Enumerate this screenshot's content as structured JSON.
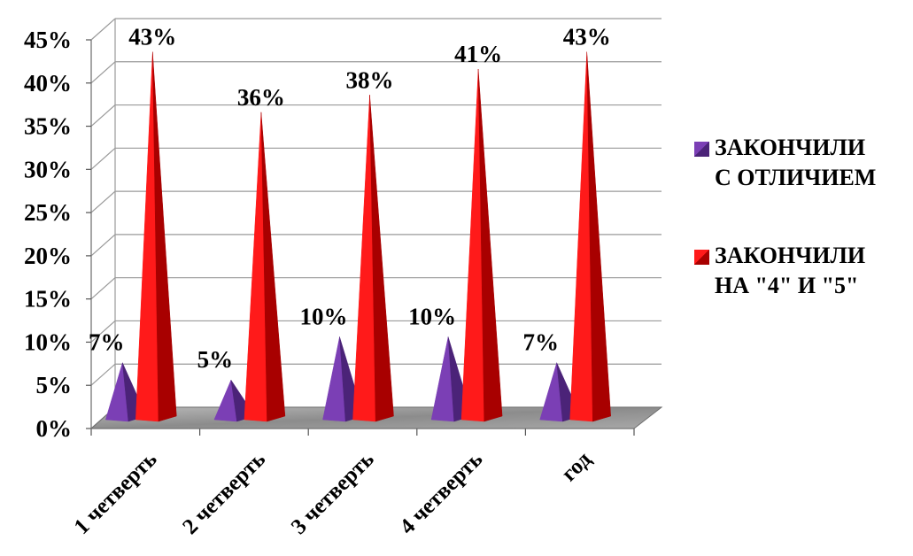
{
  "chart_data": {
    "type": "bar",
    "style": "3d-pyramid",
    "categories": [
      "1 четверть",
      "2 четверть",
      "3 четверть",
      "4 четверть",
      "год"
    ],
    "series": [
      {
        "name": "ЗАКОНЧИЛИ С ОТЛИЧИЕМ",
        "values": [
          7,
          5,
          10,
          10,
          7
        ],
        "labels": [
          "7%",
          "5%",
          "10%",
          "10%",
          "7%"
        ],
        "color": "#7b3fb5",
        "shade": "#4b2378"
      },
      {
        "name": "ЗАКОНЧИЛИ НА \"4\" И \"5\"",
        "values": [
          43,
          36,
          38,
          41,
          43
        ],
        "labels": [
          "43%",
          "36%",
          "38%",
          "41%",
          "43%"
        ],
        "color": "#ff1a1a",
        "shade": "#a80000"
      }
    ],
    "y_ticks": [
      "0%",
      "5%",
      "10%",
      "15%",
      "20%",
      "25%",
      "30%",
      "35%",
      "40%",
      "45%"
    ],
    "ylim": [
      0,
      45
    ],
    "grid": true,
    "legend_position": "right"
  },
  "legend": {
    "items": [
      {
        "label": "ЗАКОНЧИЛИ\nС ОТЛИЧИЕМ",
        "color": "#7b3fb5"
      },
      {
        "label": "ЗАКОНЧИЛИ\nНА \"4\" И \"5\"",
        "color": "#ff1a1a"
      }
    ]
  }
}
